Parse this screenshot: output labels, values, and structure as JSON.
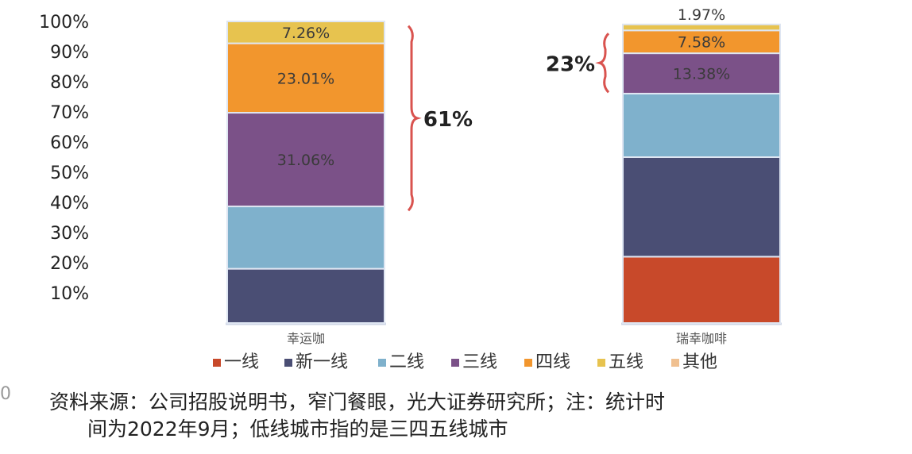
{
  "chart_data": {
    "type": "stacked_bar_percent",
    "ylim": [
      0,
      100
    ],
    "yticks": [
      10,
      20,
      30,
      40,
      50,
      60,
      70,
      80,
      90,
      100
    ],
    "ytick_suffix": "%",
    "categories": [
      "幸运咖",
      "瑞幸咖啡"
    ],
    "series": [
      {
        "name": "一线",
        "color": "#c8492a",
        "values": [
          0,
          22
        ]
      },
      {
        "name": "新一线",
        "color": "#4a4e74",
        "values": [
          18,
          33
        ]
      },
      {
        "name": "二线",
        "color": "#7fb1cc",
        "values": [
          20.67,
          21.07
        ]
      },
      {
        "name": "三线",
        "color": "#7b5188",
        "values": [
          31.06,
          13.38
        ]
      },
      {
        "name": "四线",
        "color": "#f2962d",
        "values": [
          23.01,
          7.58
        ]
      },
      {
        "name": "五线",
        "color": "#e7c34f",
        "values": [
          7.26,
          1.97
        ]
      },
      {
        "name": "其他",
        "color": "#f0c090",
        "values": [
          0,
          0
        ]
      }
    ],
    "data_labels": [
      {
        "category": "幸运咖",
        "series": "五线",
        "text": "7.26%"
      },
      {
        "category": "幸运咖",
        "series": "四线",
        "text": "23.01%"
      },
      {
        "category": "幸运咖",
        "series": "三线",
        "text": "31.06%"
      },
      {
        "category": "瑞幸咖啡",
        "series": "五线",
        "text": "1.97%"
      },
      {
        "category": "瑞幸咖啡",
        "series": "四线",
        "text": "7.58%"
      },
      {
        "category": "瑞幸咖啡",
        "series": "三线",
        "text": "13.38%"
      }
    ],
    "brackets": [
      {
        "category": "幸运咖",
        "from": 37.33,
        "to": 98.5,
        "label": "61%"
      },
      {
        "category": "瑞幸咖啡",
        "from": 76.5,
        "to": 96,
        "label": "23%"
      }
    ],
    "legend_position": "bottom"
  },
  "colors": {
    "axis_line": "#cfd6e6",
    "bracket": "#d9534f"
  },
  "source_note": {
    "line1": "资料来源：公司招股说明书，窄门餐眼，光大证券研究所；注：统计时",
    "line2": "间为2022年9月；低线城市指的是三四五线城市"
  },
  "edge_mark": "0"
}
